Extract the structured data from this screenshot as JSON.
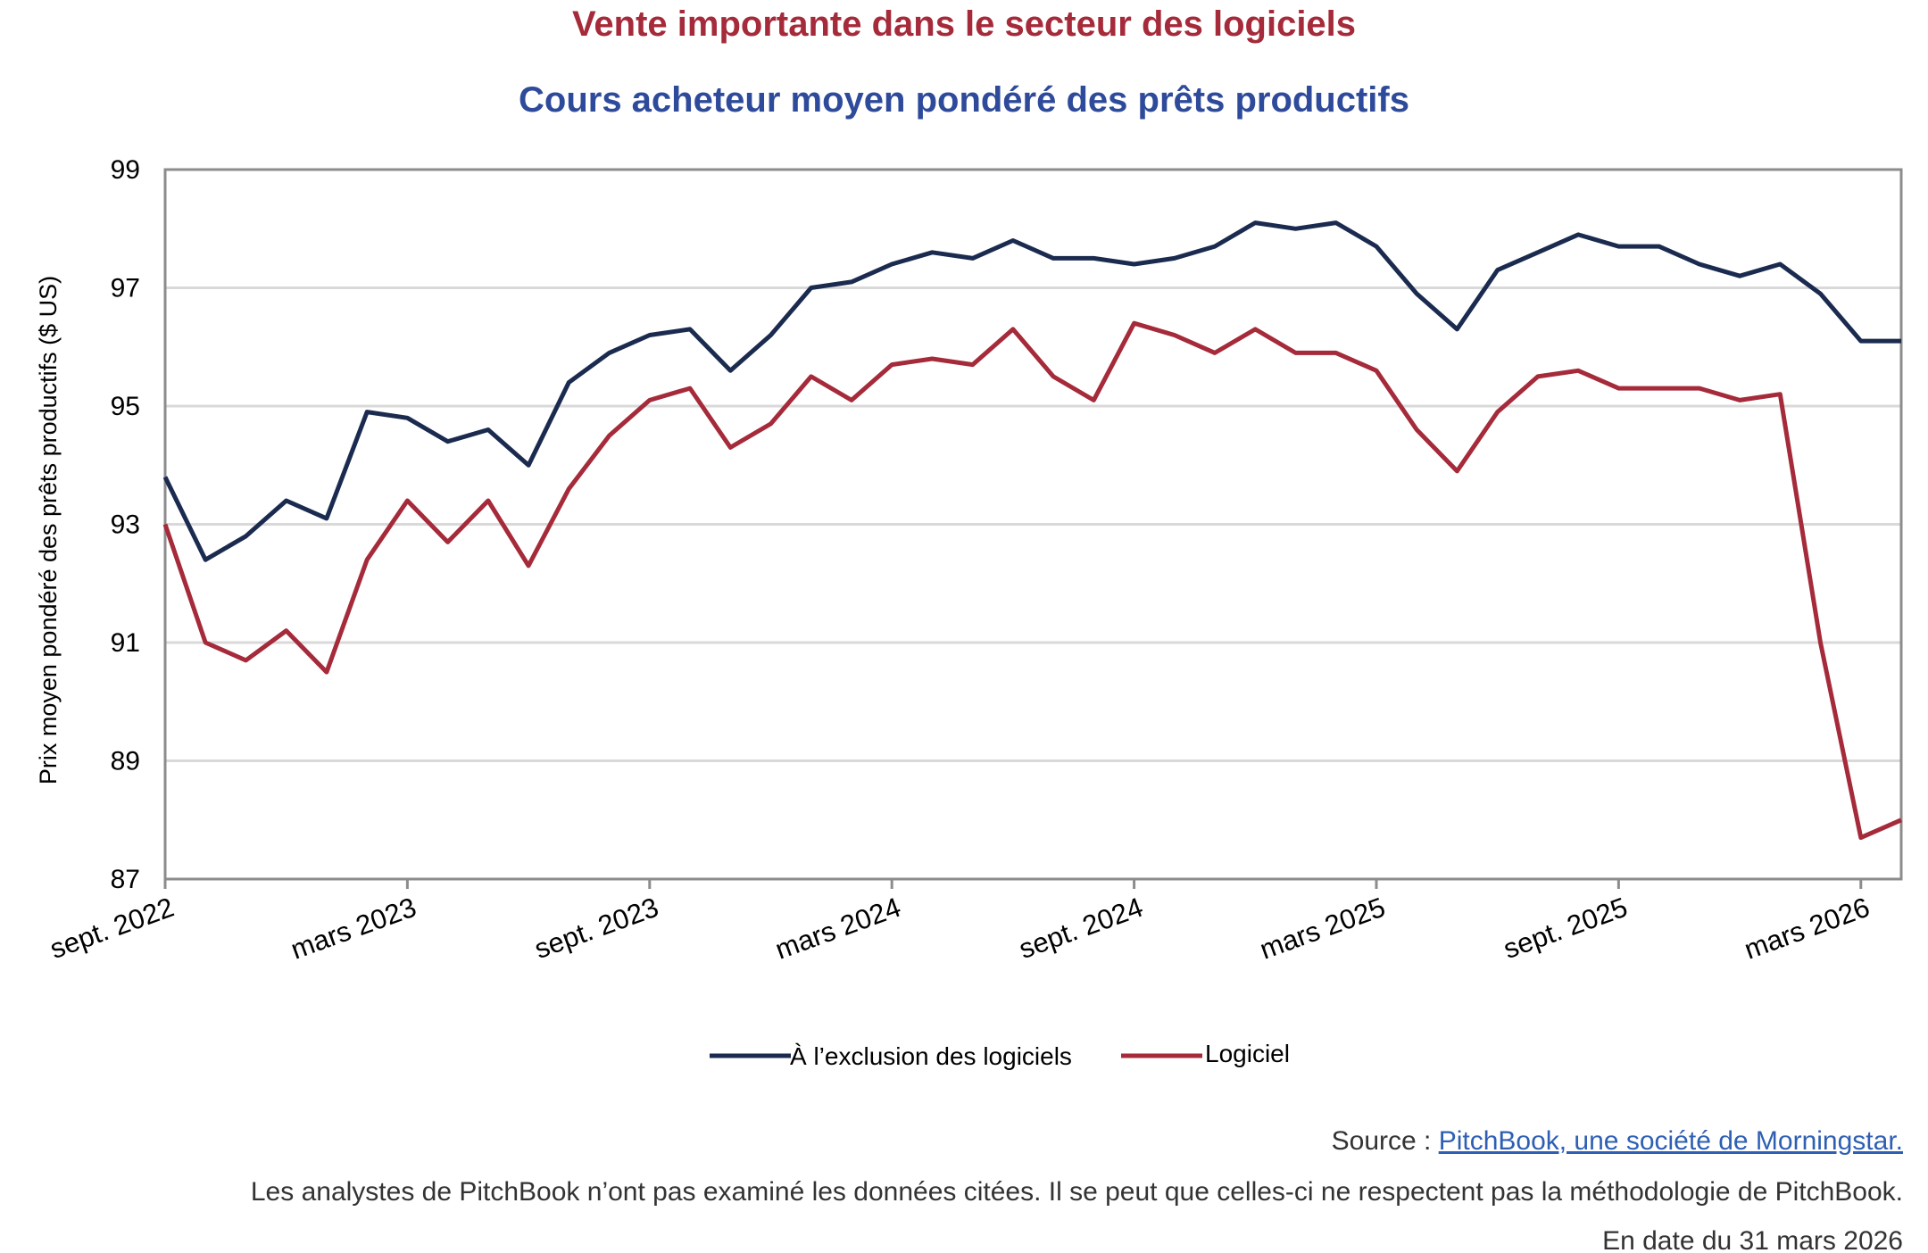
{
  "chart_data": {
    "type": "line",
    "title": "Vente importante dans le secteur des logiciels",
    "subtitle": "Cours acheteur moyen pondéré des prêts productifs",
    "xlabel": "",
    "ylabel": "Prix moyen pondéré des prêts productifs ($ US)",
    "ylim": [
      87,
      99
    ],
    "yticks": [
      87,
      89,
      91,
      93,
      95,
      97,
      99
    ],
    "grid": true,
    "legend_position": "bottom",
    "x_ticks": [
      "sept. 2022",
      "mars 2023",
      "sept. 2023",
      "mars 2024",
      "sept. 2024",
      "mars 2025",
      "sept. 2025",
      "mars 2026"
    ],
    "x": [
      "2022-09",
      "2022-10",
      "2022-11",
      "2022-12",
      "2023-01",
      "2023-02",
      "2023-03",
      "2023-04",
      "2023-05",
      "2023-06",
      "2023-07",
      "2023-08",
      "2023-09",
      "2023-10",
      "2023-11",
      "2023-12",
      "2024-01",
      "2024-02",
      "2024-03",
      "2024-04",
      "2024-05",
      "2024-06",
      "2024-07",
      "2024-08",
      "2024-09",
      "2024-10",
      "2024-11",
      "2024-12",
      "2025-01",
      "2025-02",
      "2025-03",
      "2025-04",
      "2025-05",
      "2025-06",
      "2025-07",
      "2025-08",
      "2025-09",
      "2025-10",
      "2025-11",
      "2025-12",
      "2026-01",
      "2026-02",
      "2026-03",
      "2026-04"
    ],
    "series": [
      {
        "name": "À l’exclusion des logiciels",
        "color": "#1b2b4f",
        "values": [
          93.8,
          92.4,
          92.8,
          93.4,
          93.1,
          94.9,
          94.8,
          94.4,
          94.6,
          94.0,
          95.4,
          95.9,
          96.2,
          96.3,
          95.6,
          96.2,
          97.0,
          97.1,
          97.4,
          97.6,
          97.5,
          97.8,
          97.5,
          97.5,
          97.4,
          97.5,
          97.7,
          98.1,
          98.0,
          98.1,
          97.7,
          96.9,
          96.3,
          97.3,
          97.6,
          97.9,
          97.7,
          97.7,
          97.4,
          97.2,
          97.4,
          96.9,
          96.1,
          96.1
        ]
      },
      {
        "name": "Logiciel",
        "color": "#a52a3a",
        "values": [
          93.0,
          91.0,
          90.7,
          91.2,
          90.5,
          92.4,
          93.4,
          92.7,
          93.4,
          92.3,
          93.6,
          94.5,
          95.1,
          95.3,
          94.3,
          94.7,
          95.5,
          95.1,
          95.7,
          95.8,
          95.7,
          96.3,
          95.5,
          95.1,
          96.4,
          96.2,
          95.9,
          96.3,
          95.9,
          95.9,
          95.6,
          94.6,
          93.9,
          94.9,
          95.5,
          95.6,
          95.3,
          95.3,
          95.3,
          95.1,
          95.2,
          91.0,
          87.7,
          88.0
        ]
      }
    ]
  },
  "colors": {
    "title": "#a52a3a",
    "subtitle": "#2e4a9a",
    "grid": "#d9d9d9",
    "axis": "#8c8c8c",
    "link": "#2e5fb3"
  },
  "footer": {
    "source_prefix": "Source : ",
    "source_link": "PitchBook, une société de Morningstar.",
    "disclaimer": "Les analystes de PitchBook n’ont pas examiné les données citées. Il se peut que celles-ci ne respectent pas la méthodologie de PitchBook.",
    "date": "En date du 31 mars 2026"
  }
}
